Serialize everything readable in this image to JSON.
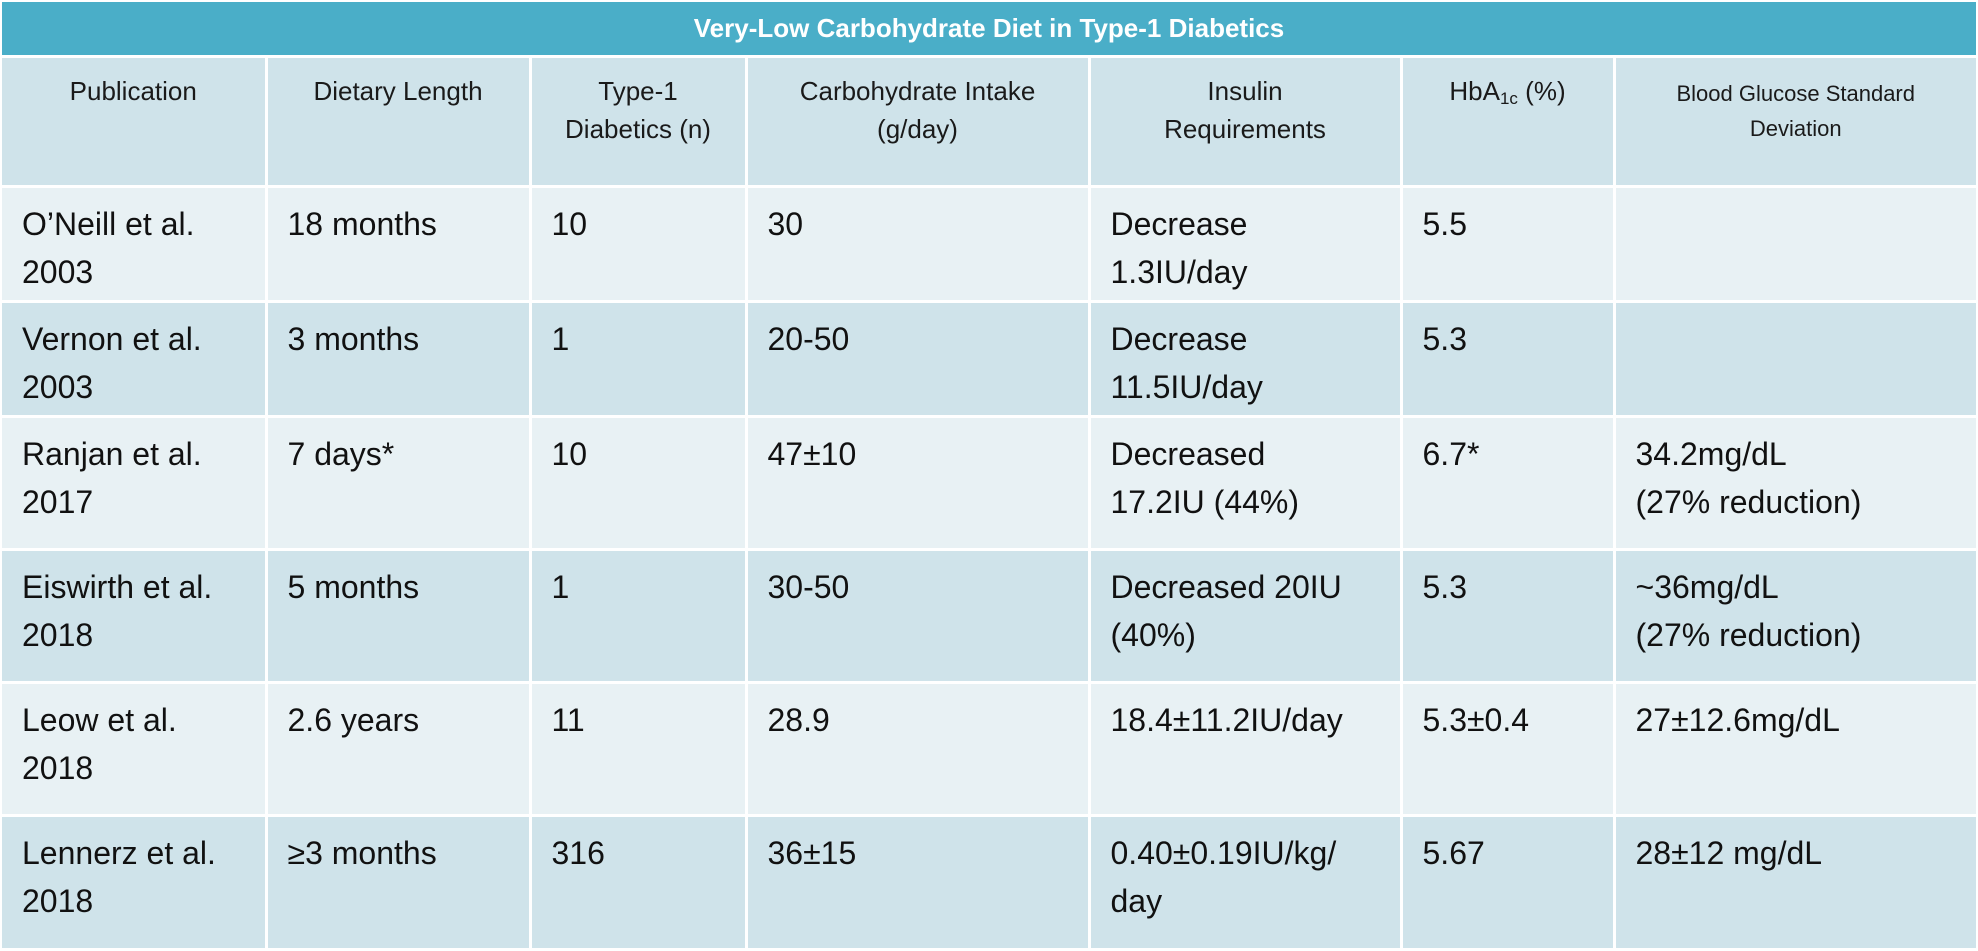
{
  "title": "Very-Low Carbohydrate Diet in Type-1 Diabetics",
  "headers": {
    "publication": "Publication",
    "dietary_length": "Dietary Length",
    "type1_line1": "Type-1",
    "type1_line2": "Diabetics (n)",
    "carb_line1": "Carbohydrate Intake",
    "carb_line2": "(g/day)",
    "insulin_line1": "Insulin",
    "insulin_line2": "Requirements",
    "hba_prefix": "HbA",
    "hba_sub": "1c",
    "hba_suffix": " (%)",
    "bgsd_line1": "Blood Glucose Standard",
    "bgsd_line2": "Deviation"
  },
  "rows": [
    {
      "publication": [
        "O’Neill et al.",
        "2003"
      ],
      "dietary_length": "18 months",
      "n": "10",
      "carb": "30",
      "insulin": [
        "Decrease",
        "1.3IU/day"
      ],
      "hba1c": "5.5",
      "bgsd": [
        "",
        ""
      ]
    },
    {
      "publication": [
        "Vernon et al.",
        "2003"
      ],
      "dietary_length": "3 months",
      "n": "1",
      "carb": "20-50",
      "insulin": [
        "Decrease",
        "11.5IU/day"
      ],
      "hba1c": "5.3",
      "bgsd": [
        "",
        ""
      ]
    },
    {
      "publication": [
        "Ranjan et al.",
        "2017"
      ],
      "dietary_length": "7 days*",
      "n": "10",
      "carb": "47±10",
      "insulin": [
        "Decreased",
        "17.2IU (44%)"
      ],
      "hba1c": "6.7*",
      "bgsd": [
        "34.2mg/dL",
        "(27% reduction)"
      ]
    },
    {
      "publication": [
        "Eiswirth et al.",
        "2018"
      ],
      "dietary_length": "5 months",
      "n": "1",
      "carb": "30-50",
      "insulin": [
        "Decreased 20IU",
        "(40%)"
      ],
      "hba1c": "5.3",
      "bgsd": [
        "~36mg/dL",
        "(27% reduction)"
      ]
    },
    {
      "publication": [
        "Leow et al.",
        "2018"
      ],
      "dietary_length": "2.6 years",
      "n": "11",
      "carb": "28.9",
      "insulin": [
        "18.4±11.2IU/day",
        ""
      ],
      "hba1c": "5.3±0.4",
      "bgsd": [
        "27±12.6mg/dL",
        ""
      ]
    },
    {
      "publication": [
        "Lennerz et al.",
        "2018"
      ],
      "dietary_length": "≥3 months",
      "n": "316",
      "carb": "36±15",
      "insulin": [
        "0.40±0.19IU/kg/",
        "day"
      ],
      "hba1c": "5.67",
      "bgsd": [
        "28±12 mg/dL",
        ""
      ]
    }
  ],
  "colors": {
    "title_bg": "#4aaec8",
    "header_bg": "#cfe3ea",
    "row_light": "#e8f1f4",
    "row_dark": "#cfe3ea"
  }
}
